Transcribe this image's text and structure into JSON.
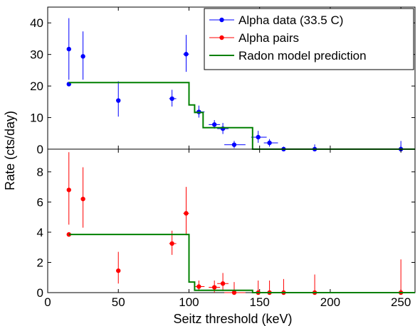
{
  "figure": {
    "xlabel": "Seitz threshold (keV)",
    "ylabel": "Rate (cts/day)",
    "colors": {
      "alpha_data": "#0000ff",
      "alpha_pairs": "#ff0000",
      "radon_model": "#008000",
      "axes": "#000000"
    }
  },
  "chart_data": [
    {
      "type": "scatter",
      "panel": "top",
      "xlim": [
        0,
        260
      ],
      "ylim": [
        0,
        45
      ],
      "xticks": [],
      "yticks": [
        0,
        10,
        20,
        30,
        40
      ],
      "legend": {
        "placement": "top-right",
        "entries": [
          "Alpha data (33.5 C)",
          "Alpha pairs",
          "Radon model prediction"
        ]
      },
      "series": [
        {
          "name": "Alpha data (33.5 C)",
          "color": "#0000ff",
          "points": [
            {
              "x": 15,
              "y": 31.7,
              "yerr": [
                22.0,
                41.5
              ]
            },
            {
              "x": 25,
              "y": 29.4,
              "yerr": [
                22.0,
                37.3
              ]
            },
            {
              "x": 50,
              "y": 15.4,
              "yerr": [
                10.3,
                21.5
              ]
            },
            {
              "x": 88,
              "y": 16.0,
              "yerr": [
                13.5,
                18.8
              ],
              "xerr": [
                86,
                91
              ]
            },
            {
              "x": 98,
              "y": 30.1,
              "yerr": [
                24.5,
                36.2
              ],
              "xerr": [
                96,
                100
              ]
            },
            {
              "x": 107,
              "y": 11.8,
              "yerr": [
                10.0,
                13.8
              ],
              "xerr": [
                104,
                111
              ]
            },
            {
              "x": 118,
              "y": 7.8,
              "yerr": [
                6.5,
                9.2
              ],
              "xerr": [
                114,
                122
              ]
            },
            {
              "x": 124,
              "y": 6.5,
              "yerr": [
                4.8,
                8.3
              ],
              "xerr": [
                120,
                128
              ]
            },
            {
              "x": 132,
              "y": 1.4,
              "yerr": [
                0.3,
                2.6
              ],
              "xerr": [
                125,
                140
              ]
            },
            {
              "x": 149,
              "y": 3.8,
              "yerr": [
                2.0,
                5.8
              ],
              "xerr": [
                144,
                155
              ]
            },
            {
              "x": 157,
              "y": 2.0,
              "yerr": [
                0.8,
                3.2
              ],
              "xerr": [
                153,
                163
              ]
            },
            {
              "x": 167,
              "y": 0.0,
              "yerr": [
                0.0,
                0.8
              ],
              "xerr": [
                162,
                172
              ]
            },
            {
              "x": 189,
              "y": 0.0,
              "yerr": [
                0.0,
                1.5
              ],
              "xerr": [
                182,
                196
              ]
            },
            {
              "x": 250,
              "y": 0.0,
              "yerr": [
                0.0,
                2.6
              ],
              "xerr": [
                243,
                257
              ]
            }
          ]
        },
        {
          "name": "Alpha data (33.5 C)",
          "color": "#0000ff",
          "points": [
            {
              "x": 15,
              "y": 20.6
            }
          ]
        },
        {
          "name": "Radon model prediction",
          "type": "step",
          "color": "#008000",
          "x": [
            15,
            100,
            100,
            104,
            104,
            110,
            110,
            145,
            145,
            260
          ],
          "y": [
            21.1,
            21.1,
            14.0,
            14.0,
            11.6,
            11.6,
            6.8,
            6.8,
            0,
            0
          ]
        }
      ]
    },
    {
      "type": "scatter",
      "panel": "bottom",
      "xlim": [
        0,
        260
      ],
      "ylim": [
        0,
        9.5
      ],
      "xticks": [
        0,
        50,
        100,
        150,
        200,
        250
      ],
      "yticks": [
        0,
        2,
        4,
        6,
        8
      ],
      "xlabel": "Seitz threshold (keV)",
      "series": [
        {
          "name": "Alpha pairs",
          "color": "#ff0000",
          "points": [
            {
              "x": 15,
              "y": 6.8,
              "yerr": [
                4.5,
                9.3
              ]
            },
            {
              "x": 25,
              "y": 6.2,
              "yerr": [
                4.3,
                8.3
              ]
            },
            {
              "x": 50,
              "y": 1.45,
              "yerr": [
                0.6,
                2.7
              ]
            },
            {
              "x": 88,
              "y": 3.25,
              "yerr": [
                2.5,
                4.1
              ],
              "xerr": [
                86,
                91
              ]
            },
            {
              "x": 98,
              "y": 5.25,
              "yerr": [
                3.8,
                7.0
              ],
              "xerr": [
                96,
                100
              ]
            },
            {
              "x": 107,
              "y": 0.4,
              "yerr": [
                0.1,
                0.8
              ],
              "xerr": [
                104,
                111
              ]
            },
            {
              "x": 118,
              "y": 0.35,
              "yerr": [
                0.0,
                0.8
              ],
              "xerr": [
                114,
                122
              ]
            },
            {
              "x": 124,
              "y": 0.6,
              "yerr": [
                0.1,
                1.3
              ],
              "xerr": [
                120,
                128
              ]
            },
            {
              "x": 132,
              "y": 0.0,
              "yerr": [
                0.0,
                0.7
              ],
              "xerr": [
                125,
                140
              ]
            },
            {
              "x": 149,
              "y": 0.0,
              "yerr": [
                0.0,
                0.8
              ]
            },
            {
              "x": 157,
              "y": 0.0,
              "yerr": [
                0.0,
                0.8
              ]
            },
            {
              "x": 167,
              "y": 0.0,
              "yerr": [
                0.0,
                0.9
              ]
            },
            {
              "x": 189,
              "y": 0.0,
              "yerr": [
                0.0,
                1.2
              ]
            },
            {
              "x": 250,
              "y": 0.0,
              "yerr": [
                0.0,
                2.2
              ]
            }
          ]
        },
        {
          "name": "Alpha pairs",
          "color": "#ff0000",
          "points": [
            {
              "x": 15,
              "y": 3.85
            }
          ]
        },
        {
          "name": "Radon model prediction",
          "type": "step",
          "color": "#008000",
          "x": [
            15,
            100,
            100,
            104,
            104,
            145,
            145,
            260
          ],
          "y": [
            3.85,
            3.85,
            0.7,
            0.7,
            0.15,
            0.15,
            0,
            0
          ]
        }
      ]
    }
  ]
}
